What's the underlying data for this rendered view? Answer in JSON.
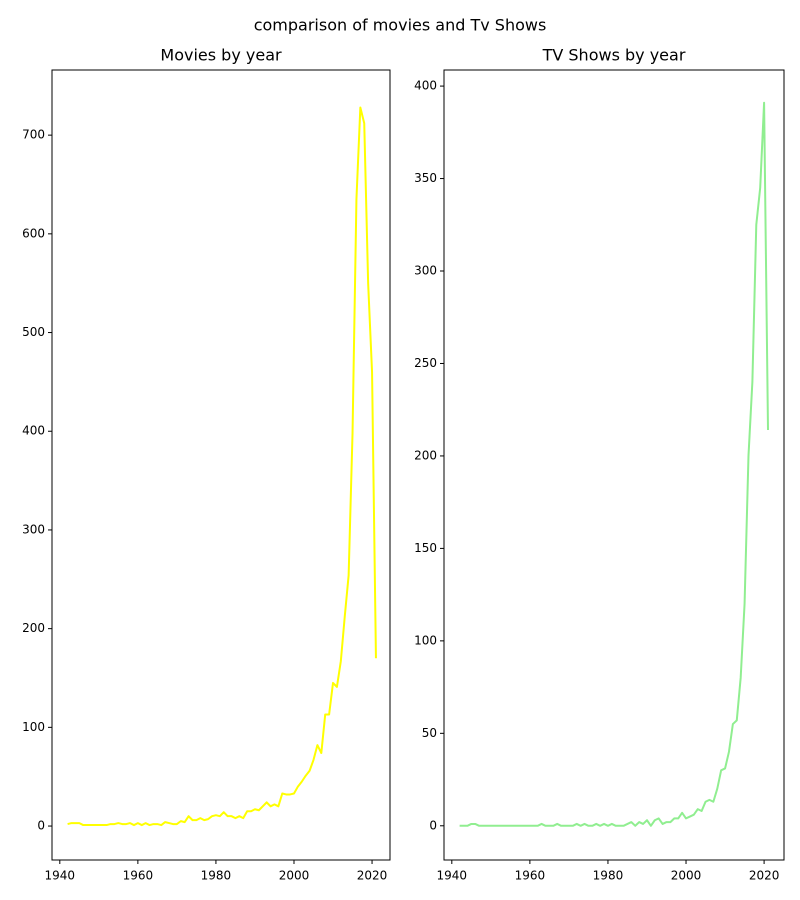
{
  "title": "comparison of movies and Tv Shows",
  "chart_data": [
    {
      "type": "line",
      "title": "Movies by year",
      "color": "#ffff00",
      "x": [
        1942,
        1943,
        1944,
        1945,
        1946,
        1947,
        1948,
        1949,
        1950,
        1951,
        1952,
        1953,
        1954,
        1955,
        1956,
        1957,
        1958,
        1959,
        1960,
        1961,
        1962,
        1963,
        1964,
        1965,
        1966,
        1967,
        1968,
        1969,
        1970,
        1971,
        1972,
        1973,
        1974,
        1975,
        1976,
        1977,
        1978,
        1979,
        1980,
        1981,
        1982,
        1983,
        1984,
        1985,
        1986,
        1987,
        1988,
        1989,
        1990,
        1991,
        1992,
        1993,
        1994,
        1995,
        1996,
        1997,
        1998,
        1999,
        2000,
        2001,
        2002,
        2003,
        2004,
        2005,
        2006,
        2007,
        2008,
        2009,
        2010,
        2011,
        2012,
        2013,
        2014,
        2015,
        2016,
        2017,
        2018,
        2019,
        2020,
        2021
      ],
      "values": [
        2,
        3,
        3,
        3,
        1,
        1,
        1,
        1,
        1,
        1,
        1,
        2,
        2,
        3,
        2,
        2,
        3,
        1,
        3,
        1,
        3,
        1,
        2,
        2,
        1,
        4,
        3,
        2,
        2,
        5,
        4,
        10,
        6,
        6,
        8,
        6,
        7,
        10,
        11,
        10,
        14,
        10,
        10,
        8,
        10,
        8,
        15,
        15,
        17,
        16,
        20,
        24,
        20,
        22,
        20,
        33,
        32,
        32,
        33,
        40,
        45,
        51,
        56,
        67,
        82,
        74,
        113,
        113,
        145,
        141,
        167,
        212,
        254,
        398,
        635,
        728,
        712,
        550,
        460,
        170
      ],
      "xlim": [
        1938,
        2024.6
      ],
      "xticks": [
        1940,
        1960,
        1980,
        2000,
        2020
      ],
      "ylim": [
        -34.4,
        766
      ],
      "yticks": [
        0,
        100,
        200,
        300,
        400,
        500,
        600,
        700
      ]
    },
    {
      "type": "line",
      "title": "TV Shows by year",
      "color": "#90ee90",
      "x": [
        1942,
        1943,
        1944,
        1945,
        1946,
        1947,
        1948,
        1949,
        1950,
        1951,
        1952,
        1953,
        1954,
        1955,
        1956,
        1957,
        1958,
        1959,
        1960,
        1961,
        1962,
        1963,
        1964,
        1965,
        1966,
        1967,
        1968,
        1969,
        1970,
        1971,
        1972,
        1973,
        1974,
        1975,
        1976,
        1977,
        1978,
        1979,
        1980,
        1981,
        1982,
        1983,
        1984,
        1985,
        1986,
        1987,
        1988,
        1989,
        1990,
        1991,
        1992,
        1993,
        1994,
        1995,
        1996,
        1997,
        1998,
        1999,
        2000,
        2001,
        2002,
        2003,
        2004,
        2005,
        2006,
        2007,
        2008,
        2009,
        2010,
        2011,
        2012,
        2013,
        2014,
        2015,
        2016,
        2017,
        2018,
        2019,
        2020,
        2021
      ],
      "values": [
        0,
        0,
        0,
        1,
        1,
        0,
        0,
        0,
        0,
        0,
        0,
        0,
        0,
        0,
        0,
        0,
        0,
        0,
        0,
        0,
        0,
        1,
        0,
        0,
        0,
        1,
        0,
        0,
        0,
        0,
        1,
        0,
        1,
        0,
        0,
        1,
        0,
        1,
        0,
        1,
        0,
        0,
        0,
        1,
        2,
        0,
        2,
        1,
        3,
        0,
        3,
        4,
        1,
        2,
        2,
        4,
        4,
        7,
        4,
        5,
        6,
        9,
        8,
        13,
        14,
        13,
        20,
        30,
        31,
        40,
        55,
        57,
        80,
        120,
        200,
        240,
        325,
        345,
        391,
        214
      ],
      "xlim": [
        1938,
        2025.1
      ],
      "xticks": [
        1940,
        1960,
        1980,
        2000,
        2020
      ],
      "ylim": [
        -18.5,
        408.7
      ],
      "yticks": [
        0,
        50,
        100,
        150,
        200,
        250,
        300,
        350,
        400
      ]
    }
  ]
}
